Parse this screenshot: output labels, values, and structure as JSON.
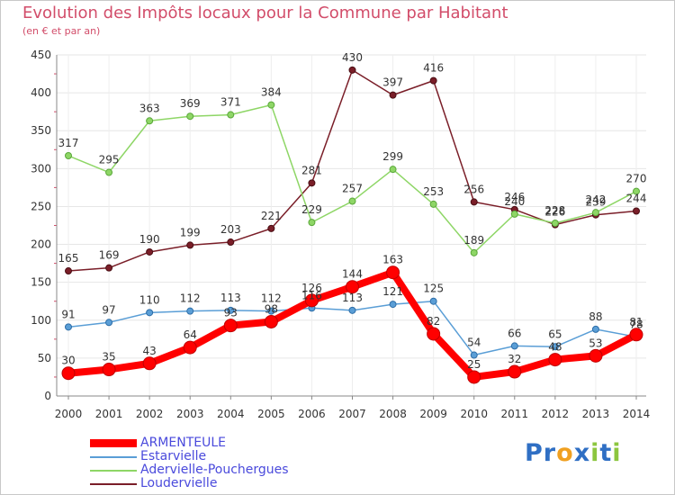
{
  "header": {
    "title": "Evolution des Impôts locaux pour la Commune par Habitant",
    "subtitle": "(en € et par an)"
  },
  "logo": {
    "text": "Proxiti",
    "letters": [
      {
        "ch": "P",
        "color": "#2f6fc4"
      },
      {
        "ch": "r",
        "color": "#2f6fc4"
      },
      {
        "ch": "o",
        "color": "#f0a020"
      },
      {
        "ch": "x",
        "color": "#2f6fc4"
      },
      {
        "ch": "i",
        "color": "#8cc63f"
      },
      {
        "ch": "t",
        "color": "#2f6fc4"
      },
      {
        "ch": "i",
        "color": "#8cc63f"
      }
    ]
  },
  "chart_data": {
    "type": "line",
    "title": "Evolution des Impôts locaux pour la Commune par Habitant",
    "subtitle": "(en € et par an)",
    "x": [
      "2000",
      "2001",
      "2002",
      "2003",
      "2004",
      "2005",
      "2006",
      "2007",
      "2008",
      "2009",
      "2010",
      "2011",
      "2012",
      "2013",
      "2014"
    ],
    "ylim": [
      0,
      450
    ],
    "yticks": [
      0,
      50,
      100,
      150,
      200,
      250,
      300,
      350,
      400,
      450
    ],
    "grid": true,
    "legend": "bottom-left",
    "series": [
      {
        "name": "Loudervielle",
        "color": "#7a1e28",
        "values": [
          165,
          169,
          190,
          199,
          203,
          221,
          281,
          430,
          397,
          416,
          256,
          246,
          226,
          239,
          244
        ]
      },
      {
        "name": "Adervielle-Pouchergues",
        "color": "#8ed666",
        "values": [
          317,
          295,
          363,
          369,
          371,
          384,
          229,
          257,
          299,
          253,
          189,
          240,
          228,
          242,
          270
        ]
      },
      {
        "name": "Estarvielle",
        "color": "#5a9ed6",
        "values": [
          91,
          97,
          110,
          112,
          113,
          112,
          116,
          113,
          121,
          125,
          54,
          66,
          65,
          88,
          78
        ]
      },
      {
        "name": "ARMENTEULE",
        "color": "#ff0000",
        "values": [
          30,
          35,
          43,
          64,
          93,
          98,
          126,
          144,
          163,
          82,
          25,
          32,
          48,
          53,
          81
        ]
      }
    ]
  }
}
